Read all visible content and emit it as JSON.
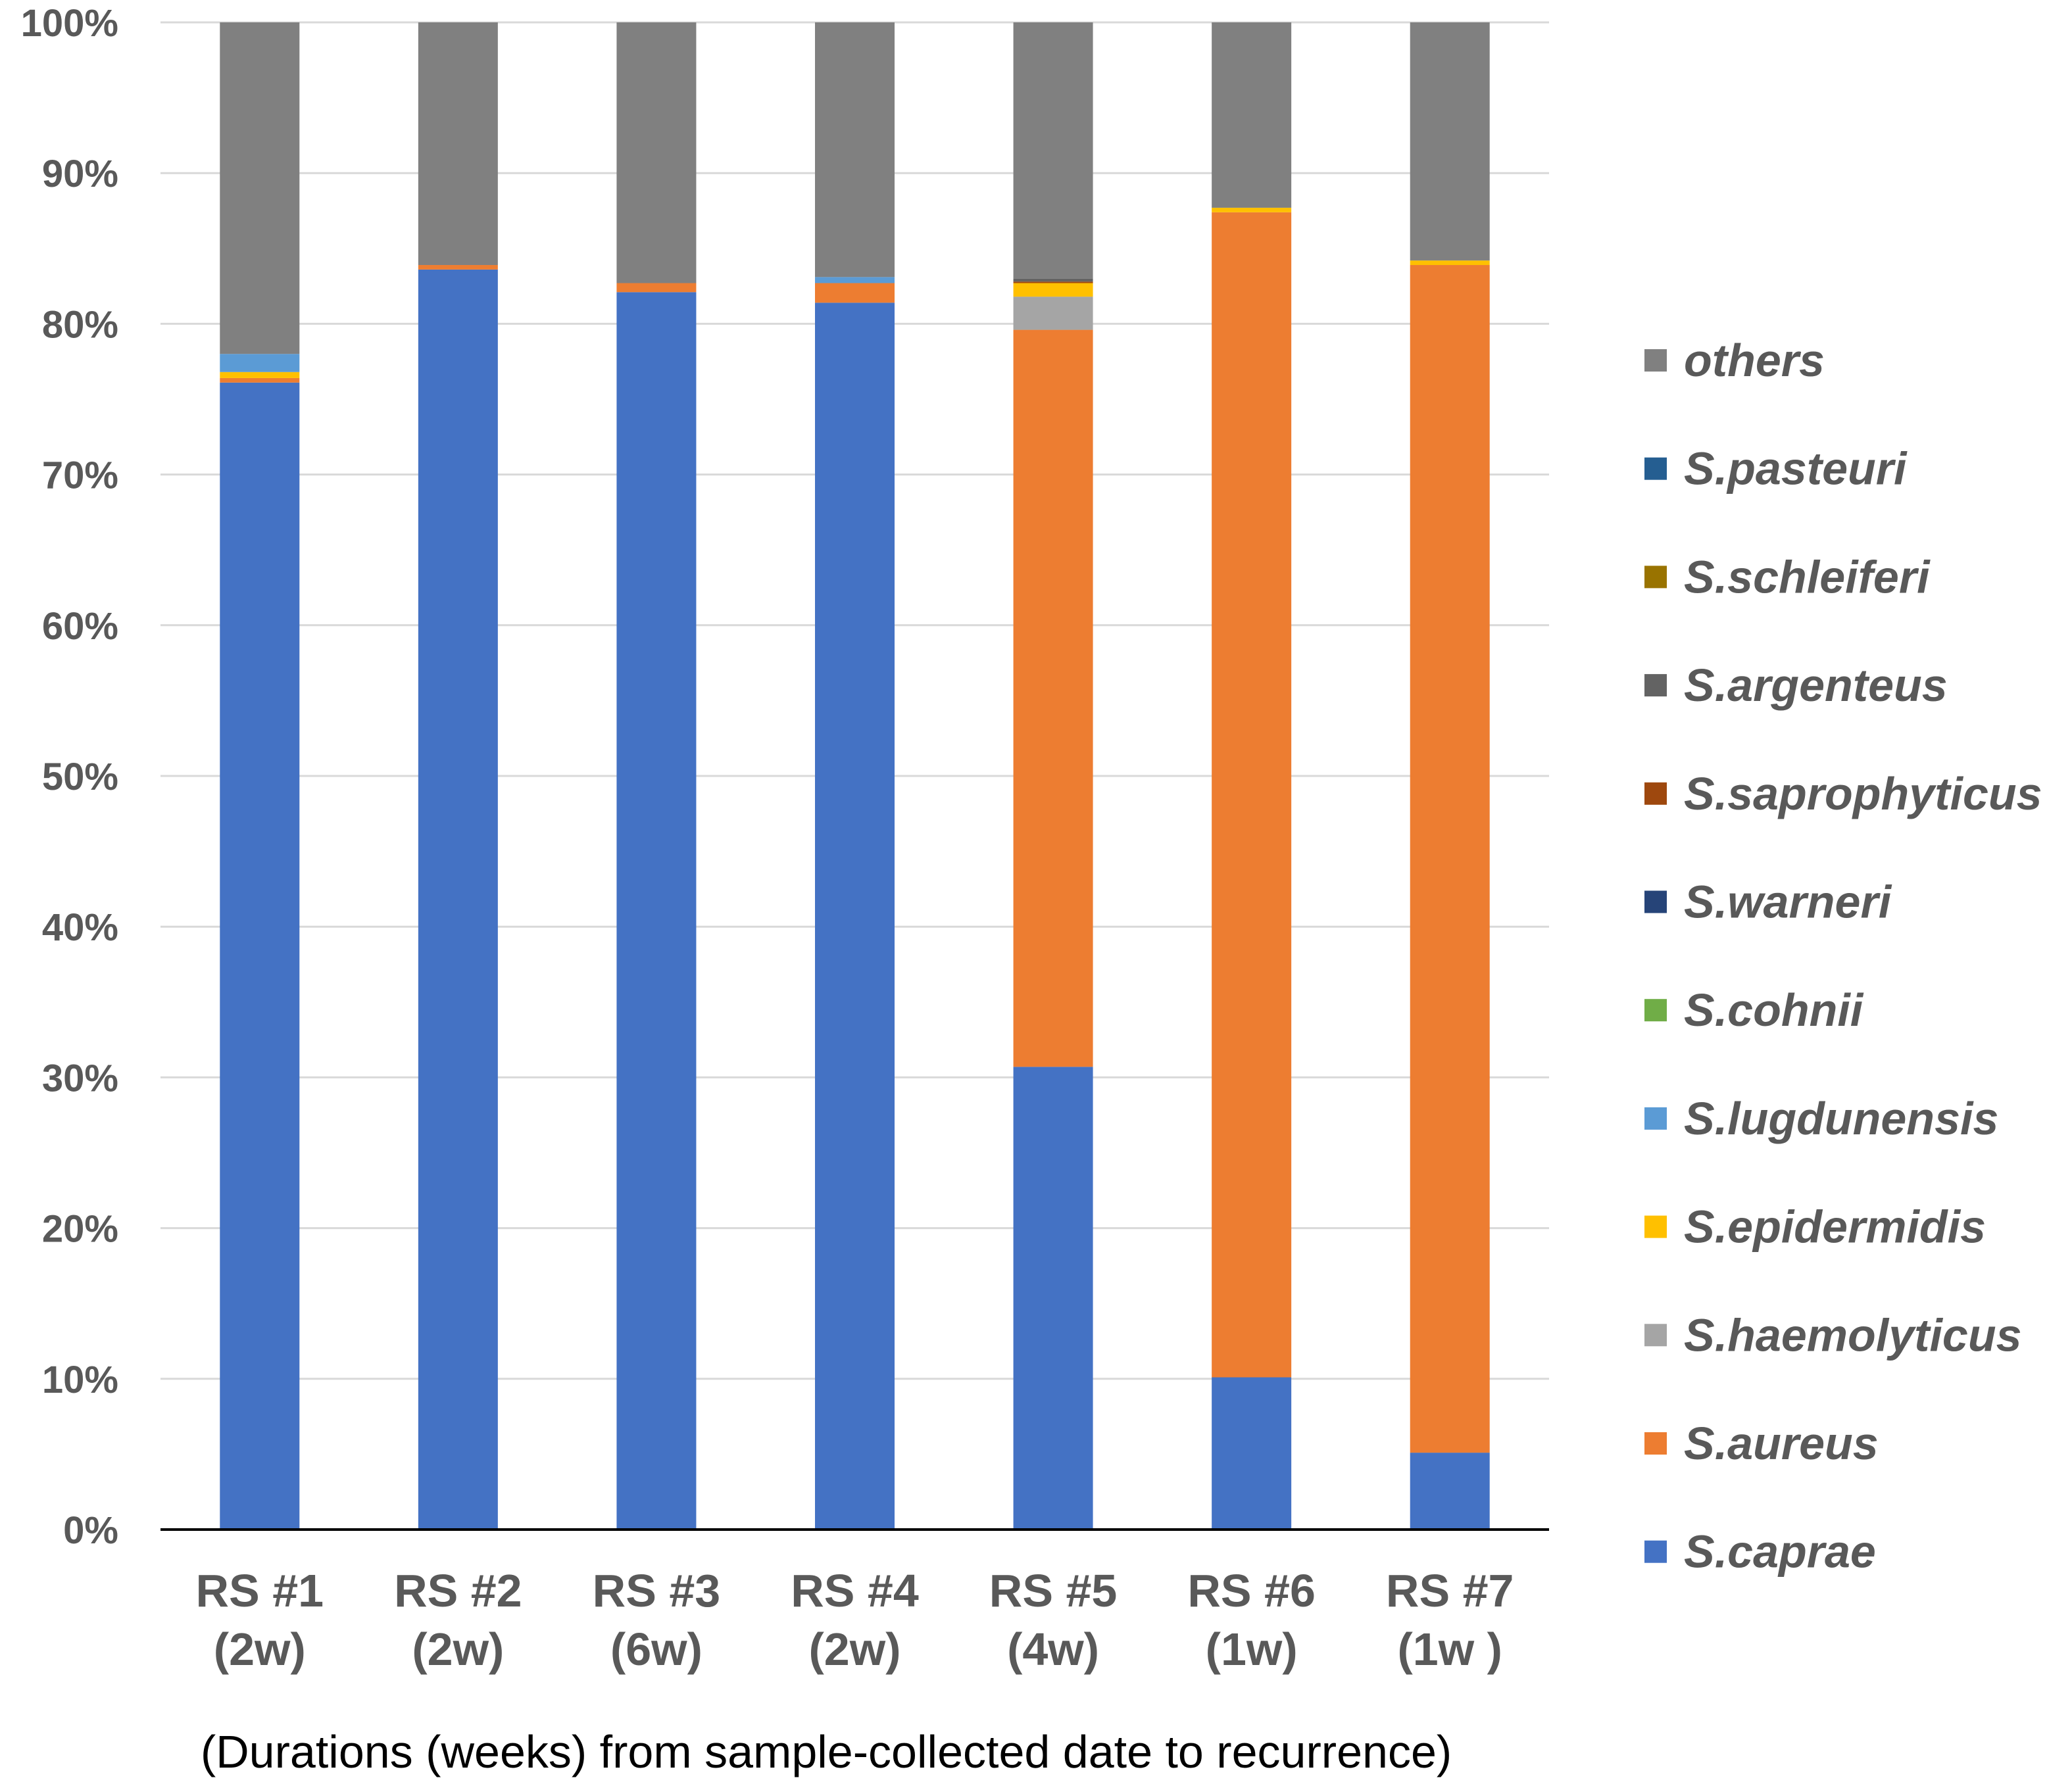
{
  "chart_data": {
    "type": "bar",
    "stacked": true,
    "normalized": true,
    "title": "",
    "xlabel": "(Durations (weeks) from sample-collected date to recurrence)",
    "ylabel": "",
    "ylim": [
      0,
      100
    ],
    "yticks": [
      "0%",
      "10%",
      "20%",
      "30%",
      "40%",
      "50%",
      "60%",
      "70%",
      "80%",
      "90%",
      "100%"
    ],
    "grid": true,
    "legend_position": "right",
    "categories": [
      [
        "RS #1",
        "(2w)"
      ],
      [
        "RS #2",
        "(2w)"
      ],
      [
        "RS #3",
        "(6w)"
      ],
      [
        "RS #4",
        "(2w)"
      ],
      [
        "RS #5",
        "(4w)"
      ],
      [
        "RS #6",
        "(1w)"
      ],
      [
        "RS #7",
        "(1w )"
      ]
    ],
    "series": [
      {
        "name": "S.caprae",
        "color": "#4472C4",
        "values": [
          76.1,
          83.6,
          82.1,
          81.4,
          30.7,
          10.1,
          5.1
        ]
      },
      {
        "name": "S.aureus",
        "color": "#ED7D31",
        "values": [
          0.3,
          0.3,
          0.6,
          1.3,
          48.9,
          77.3,
          78.8
        ]
      },
      {
        "name": "S.haemolyticus",
        "color": "#A5A5A5",
        "values": [
          0.0,
          0.0,
          0.0,
          0.0,
          2.2,
          0.0,
          0.0
        ]
      },
      {
        "name": "S.epidermidis",
        "color": "#FFC000",
        "values": [
          0.4,
          0.0,
          0.0,
          0.0,
          0.9,
          0.3,
          0.3
        ]
      },
      {
        "name": "S.lugdunensis",
        "color": "#5B9BD5",
        "values": [
          1.2,
          0.0,
          0.0,
          0.4,
          0.0,
          0.0,
          0.0
        ]
      },
      {
        "name": "S.cohnii",
        "color": "#70AD47",
        "values": [
          0.0,
          0.0,
          0.0,
          0.0,
          0.0,
          0.0,
          0.0
        ]
      },
      {
        "name": "S.warneri",
        "color": "#264478",
        "values": [
          0.0,
          0.0,
          0.0,
          0.0,
          0.0,
          0.0,
          0.0
        ]
      },
      {
        "name": "S.saprophyticus",
        "color": "#9E480E",
        "values": [
          0.0,
          0.0,
          0.0,
          0.0,
          0.1,
          0.0,
          0.0
        ]
      },
      {
        "name": "S.argenteus",
        "color": "#636363",
        "values": [
          0.0,
          0.0,
          0.0,
          0.0,
          0.2,
          0.0,
          0.0
        ]
      },
      {
        "name": "S.schleiferi",
        "color": "#997300",
        "values": [
          0.0,
          0.0,
          0.0,
          0.0,
          0.0,
          0.0,
          0.0
        ]
      },
      {
        "name": "S.pasteuri",
        "color": "#255E91",
        "values": [
          0.0,
          0.0,
          0.0,
          0.0,
          0.0,
          0.0,
          0.0
        ]
      },
      {
        "name": "others",
        "color": "#808080",
        "values": [
          22.0,
          16.1,
          17.3,
          16.9,
          17.0,
          12.3,
          15.8
        ]
      }
    ]
  }
}
